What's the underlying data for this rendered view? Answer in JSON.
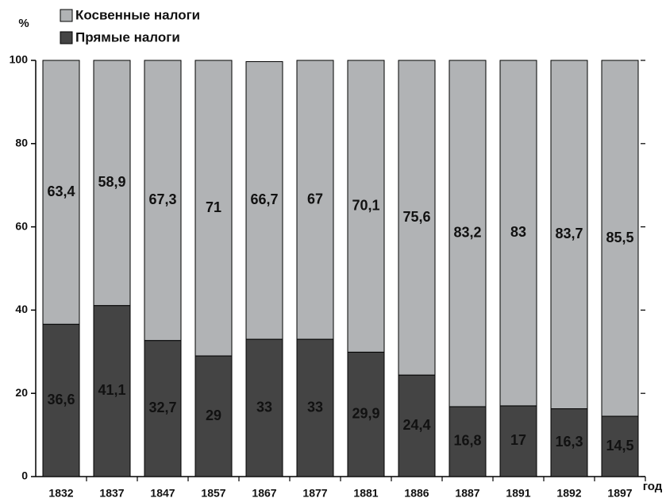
{
  "chart_data": {
    "type": "stacked-bar",
    "y_label": "%",
    "x_label": "год",
    "categories": [
      "1832",
      "1837",
      "1847",
      "1857",
      "1867",
      "1877",
      "1881",
      "1886",
      "1887",
      "1891",
      "1892",
      "1897"
    ],
    "series": [
      {
        "name": "Косвенные налоги",
        "color": "#b1b3b5",
        "values": [
          63.4,
          58.9,
          67.3,
          71,
          66.7,
          67,
          70.1,
          75.6,
          83.2,
          83,
          83.7,
          85.5
        ],
        "value_labels": [
          "63,4",
          "58,9",
          "67,3",
          "71",
          "66,7",
          "67",
          "70,1",
          "75,6",
          "83,2",
          "83",
          "83,7",
          "85,5"
        ]
      },
      {
        "name": "Прямые налоги",
        "color": "#444444",
        "values": [
          36.6,
          41.1,
          32.7,
          29,
          33,
          33,
          29.9,
          24.4,
          16.8,
          17,
          16.3,
          14.5
        ],
        "value_labels": [
          "36,6",
          "41,1",
          "32,7",
          "29",
          "33",
          "33",
          "29,9",
          "24,4",
          "16,8",
          "17",
          "16,3",
          "14,5"
        ]
      }
    ],
    "ylim": [
      0,
      100
    ],
    "yticks": [
      0,
      20,
      40,
      60,
      80,
      100
    ],
    "grid": false
  }
}
